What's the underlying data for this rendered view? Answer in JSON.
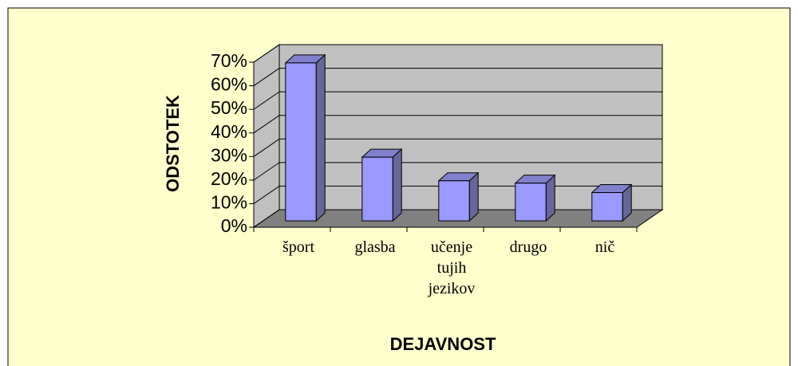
{
  "chart_data": {
    "type": "bar",
    "categories": [
      "šport",
      "glasba",
      "učenje tujih jezikov",
      "drugo",
      "nič"
    ],
    "values": [
      67,
      27,
      17,
      16,
      12
    ],
    "color": "#9999ff",
    "ylim": [
      0,
      70
    ],
    "yticks": [
      {
        "value": 0,
        "label": "0%"
      },
      {
        "value": 10,
        "label": "10%"
      },
      {
        "value": 20,
        "label": "20%"
      },
      {
        "value": 30,
        "label": "30%"
      },
      {
        "value": 40,
        "label": "40%"
      },
      {
        "value": 50,
        "label": "50%"
      },
      {
        "value": 60,
        "label": "60%"
      },
      {
        "value": 70,
        "label": "70%"
      }
    ],
    "ylabel": "ODSTOTEK",
    "xlabel": "DEJAVNOST",
    "grid": true
  }
}
